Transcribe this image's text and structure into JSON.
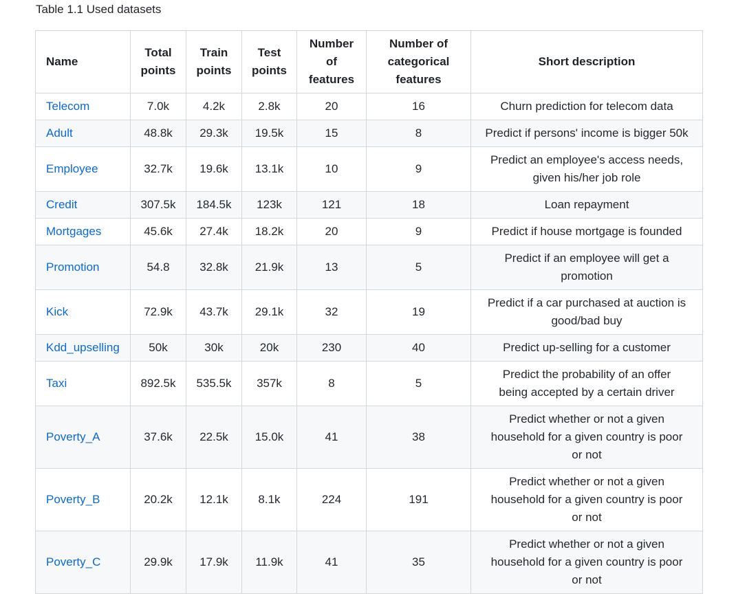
{
  "caption": "Table 1.1 Used datasets",
  "table": {
    "headers": [
      [
        "Name"
      ],
      [
        "Total",
        "points"
      ],
      [
        "Train",
        "points"
      ],
      [
        "Test",
        "points"
      ],
      [
        "Number",
        "of",
        "features"
      ],
      [
        "Number of",
        "categorical",
        "features"
      ],
      [
        "Short description"
      ]
    ],
    "rows": [
      {
        "name": "Telecom",
        "total": "7.0k",
        "train": "4.2k",
        "test": "2.8k",
        "features": "20",
        "categorical": "16",
        "desc": [
          "Churn prediction for telecom data"
        ]
      },
      {
        "name": "Adult",
        "total": "48.8k",
        "train": "29.3k",
        "test": "19.5k",
        "features": "15",
        "categorical": "8",
        "desc": [
          "Predict if persons' income is bigger 50k"
        ]
      },
      {
        "name": "Employee",
        "total": "32.7k",
        "train": "19.6k",
        "test": "13.1k",
        "features": "10",
        "categorical": "9",
        "desc": [
          "Predict an employee's access needs,",
          "given his/her job role"
        ]
      },
      {
        "name": "Credit",
        "total": "307.5k",
        "train": "184.5k",
        "test": "123k",
        "features": "121",
        "categorical": "18",
        "desc": [
          "Loan repayment"
        ]
      },
      {
        "name": "Mortgages",
        "total": "45.6k",
        "train": "27.4k",
        "test": "18.2k",
        "features": "20",
        "categorical": "9",
        "desc": [
          "Predict if house mortgage is founded"
        ]
      },
      {
        "name": "Promotion",
        "total": "54.8",
        "train": "32.8k",
        "test": "21.9k",
        "features": "13",
        "categorical": "5",
        "desc": [
          "Predict if an employee will get a",
          "promotion"
        ]
      },
      {
        "name": "Kick",
        "total": "72.9k",
        "train": "43.7k",
        "test": "29.1k",
        "features": "32",
        "categorical": "19",
        "desc": [
          "Predict if a car purchased at auction is",
          "good/bad buy"
        ]
      },
      {
        "name": "Kdd_upselling",
        "total": "50k",
        "train": "30k",
        "test": "20k",
        "features": "230",
        "categorical": "40",
        "desc": [
          "Predict up-selling for a customer"
        ]
      },
      {
        "name": "Taxi",
        "total": "892.5k",
        "train": "535.5k",
        "test": "357k",
        "features": "8",
        "categorical": "5",
        "desc": [
          "Predict the probability of an offer",
          "being accepted by a certain driver"
        ]
      },
      {
        "name": "Poverty_A",
        "total": "37.6k",
        "train": "22.5k",
        "test": "15.0k",
        "features": "41",
        "categorical": "38",
        "desc": [
          "Predict whether or not a given",
          "household for a given country is poor",
          "or not"
        ]
      },
      {
        "name": "Poverty_B",
        "total": "20.2k",
        "train": "12.1k",
        "test": "8.1k",
        "features": "224",
        "categorical": "191",
        "desc": [
          "Predict whether or not a given",
          "household for a given country is poor",
          "or not"
        ]
      },
      {
        "name": "Poverty_C",
        "total": "29.9k",
        "train": "17.9k",
        "test": "11.9k",
        "features": "41",
        "categorical": "35",
        "desc": [
          "Predict whether or not a given",
          "household for a given country is poor",
          "or not"
        ]
      }
    ]
  }
}
